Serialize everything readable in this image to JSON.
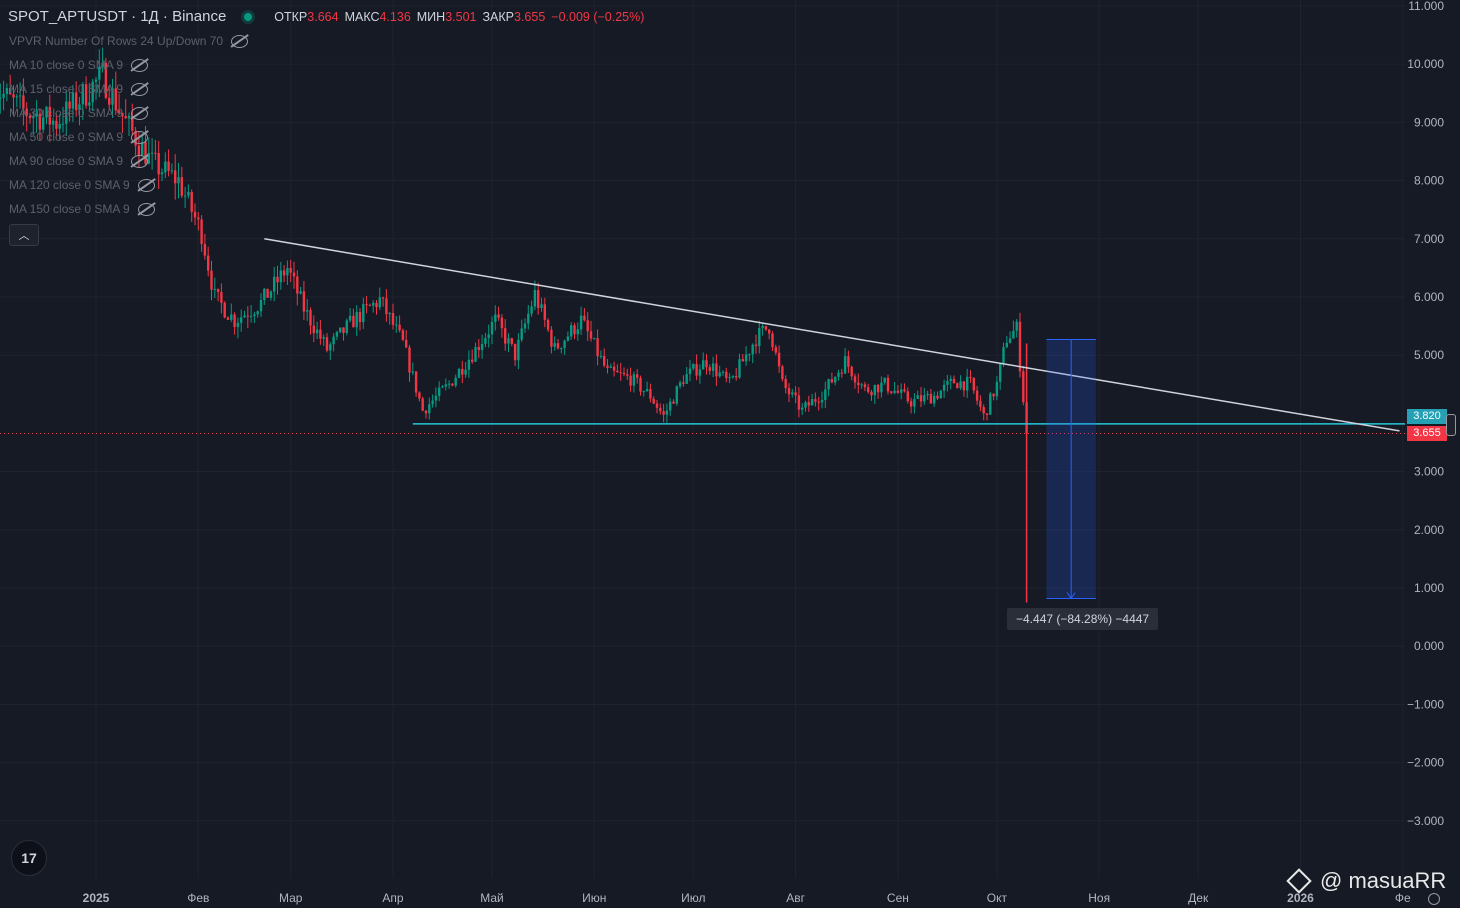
{
  "header": {
    "symbol": "SPOT_APTUSDT · 1Д · Binance",
    "open_label": "ОТКР",
    "open_value": "3.664",
    "high_label": "МАКС",
    "high_value": "4.136",
    "low_label": "МИН",
    "low_value": "3.501",
    "close_label": "ЗАКР",
    "close_value": "3.655",
    "change": "−0.009 (−0.25%)"
  },
  "indicators": [
    "VPVR Number Of Rows 24 Up/Down 70",
    "MA 10 close 0 SMA 9",
    "MA 15 close 0 SMA 9",
    "MA 30 close 0 SMA 9",
    "MA 50 close 0 SMA 9",
    "MA 90 close 0 SMA 9",
    "MA 120 close 0 SMA 9",
    "MA 150 close 0 SMA 9"
  ],
  "measure_label": "−4.447 (−84.28%) −4447",
  "price_tags": {
    "level": "3.820",
    "last": "3.655"
  },
  "watermark": "@ masuaRR",
  "logo_text": "17",
  "colors": {
    "background": "#161a25",
    "up": "#089981",
    "down": "#f23645",
    "trendline": "#d1d4dc",
    "support": "#26c6da",
    "measure_box": "#2962ff"
  },
  "chart_data": {
    "type": "candlestick",
    "y_axis": {
      "ticks": [
        "11.000",
        "10.000",
        "9.000",
        "8.000",
        "7.000",
        "6.000",
        "5.000",
        "3.000",
        "2.000",
        "1.000",
        "0.000",
        "−1.000",
        "−2.000",
        "−3.000"
      ],
      "tick_values": [
        11,
        10,
        9,
        8,
        7,
        6,
        5,
        3,
        2,
        1,
        0,
        -1,
        -2,
        -3
      ],
      "range": [
        -3.4,
        11.0
      ],
      "position": "right"
    },
    "x_axis": {
      "labels": [
        "2025",
        "Фев",
        "Мар",
        "Апр",
        "Май",
        "Июн",
        "Июл",
        "Авг",
        "Сен",
        "Окт",
        "Ноя",
        "Дек",
        "2026",
        "Фе"
      ],
      "dates": [
        "2025-01-01",
        "2025-02-01",
        "2025-03-01",
        "2025-04-01",
        "2025-05-01",
        "2025-06-01",
        "2025-07-01",
        "2025-08-01",
        "2025-09-01",
        "2025-10-01",
        "2025-11-01",
        "2025-12-01",
        "2026-01-01",
        "2026-02-01"
      ]
    },
    "grid": true,
    "series_path": [
      [
        "2024-12-01",
        9.6
      ],
      [
        "2024-12-10",
        9.2
      ],
      [
        "2024-12-20",
        9.0
      ],
      [
        "2025-01-03",
        9.8
      ],
      [
        "2025-01-10",
        9.0
      ],
      [
        "2025-01-18",
        8.3
      ],
      [
        "2025-01-26",
        8.0
      ],
      [
        "2025-02-02",
        7.1
      ],
      [
        "2025-02-06",
        6.0
      ],
      [
        "2025-02-12",
        5.6
      ],
      [
        "2025-02-20",
        5.9
      ],
      [
        "2025-02-28",
        6.5
      ],
      [
        "2025-03-05",
        5.8
      ],
      [
        "2025-03-12",
        5.1
      ],
      [
        "2025-03-20",
        5.6
      ],
      [
        "2025-03-28",
        5.95
      ],
      [
        "2025-04-04",
        5.2
      ],
      [
        "2025-04-10",
        4.05
      ],
      [
        "2025-04-18",
        4.5
      ],
      [
        "2025-04-26",
        5.1
      ],
      [
        "2025-05-02",
        5.6
      ],
      [
        "2025-05-08",
        5.0
      ],
      [
        "2025-05-14",
        6.05
      ],
      [
        "2025-05-20",
        5.1
      ],
      [
        "2025-05-28",
        5.6
      ],
      [
        "2025-06-05",
        4.7
      ],
      [
        "2025-06-12",
        4.6
      ],
      [
        "2025-06-18",
        4.3
      ],
      [
        "2025-06-22",
        3.95
      ],
      [
        "2025-06-28",
        4.6
      ],
      [
        "2025-07-05",
        4.9
      ],
      [
        "2025-07-12",
        4.5
      ],
      [
        "2025-07-20",
        5.3
      ],
      [
        "2025-07-24",
        5.5
      ],
      [
        "2025-07-28",
        4.5
      ],
      [
        "2025-08-03",
        4.05
      ],
      [
        "2025-08-10",
        4.4
      ],
      [
        "2025-08-16",
        4.9
      ],
      [
        "2025-08-22",
        4.4
      ],
      [
        "2025-08-28",
        4.5
      ],
      [
        "2025-09-05",
        4.2
      ],
      [
        "2025-09-12",
        4.3
      ],
      [
        "2025-09-18",
        4.55
      ],
      [
        "2025-09-23",
        4.5
      ],
      [
        "2025-09-27",
        3.95
      ],
      [
        "2025-10-01",
        4.5
      ],
      [
        "2025-10-04",
        5.3
      ],
      [
        "2025-10-07",
        5.45
      ],
      [
        "2025-10-10",
        3.65
      ]
    ],
    "crash_wick": {
      "date": "2025-10-10",
      "low": 0.75,
      "high": 5.2
    },
    "trendline": {
      "from": [
        "2025-02-21",
        7.0
      ],
      "to": [
        "2026-01-31",
        3.7
      ]
    },
    "support_level": {
      "value": 3.82,
      "from": "2025-04-07"
    },
    "last_price": 3.655,
    "measure": {
      "date_from": "2025-10-16",
      "date_to": "2025-10-31",
      "top": 5.27,
      "bottom": 0.82,
      "change": -4.447,
      "change_pct": -84.28
    }
  }
}
